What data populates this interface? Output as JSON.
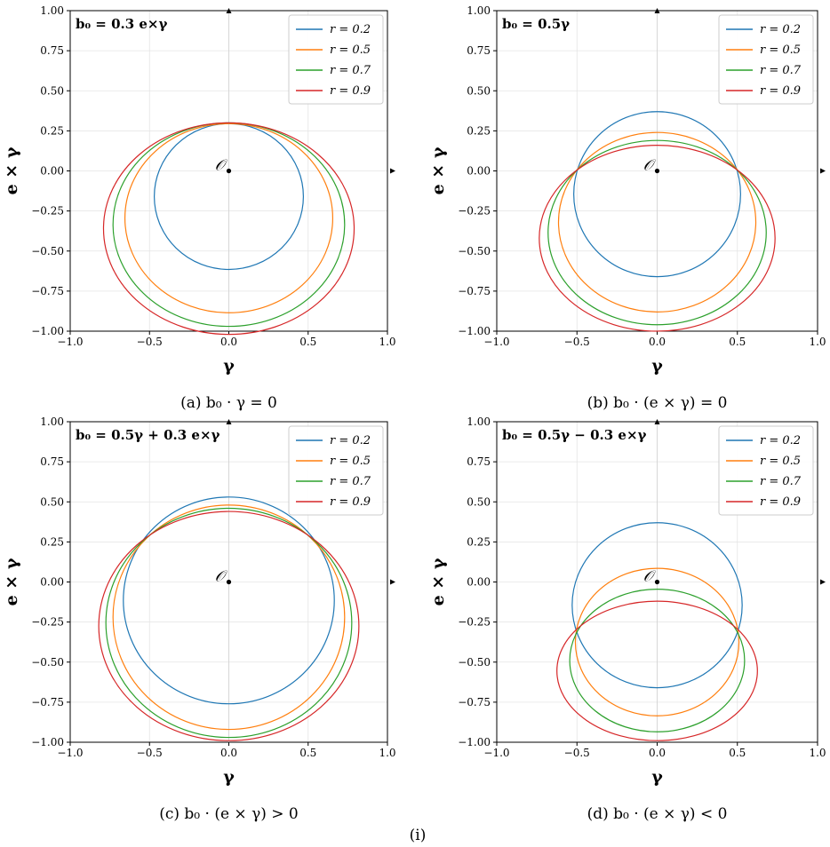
{
  "chart_data": [
    {
      "type": "line",
      "panel_label": "b₀ = 0.3 e×γ",
      "caption": "(a) b₀ · γ = 0",
      "xlabel": "γ",
      "ylabel": "e × γ",
      "xlim": [
        -1.0,
        1.0
      ],
      "ylim": [
        -1.0,
        1.0
      ],
      "x_ticks": [
        "−1.0",
        "−0.5",
        "0.0",
        "0.5",
        "1.0"
      ],
      "y_ticks": [
        "1.00",
        "0.75",
        "0.50",
        "0.25",
        "0.00",
        "−0.25",
        "−0.50",
        "−0.75",
        "−1.00"
      ],
      "grid": true,
      "legend_position": "top-right",
      "origin_label": "𝒪",
      "series": [
        {
          "name": "r = 0.2",
          "color": "#1f77b4",
          "center": [
            0.0,
            -0.16
          ],
          "radii": [
            0.47,
            0.455
          ]
        },
        {
          "name": "r = 0.5",
          "color": "#ff7f0e",
          "center": [
            0.0,
            -0.295
          ],
          "radii": [
            0.655,
            0.59
          ]
        },
        {
          "name": "r = 0.7",
          "color": "#2ca02c",
          "center": [
            0.0,
            -0.335
          ],
          "radii": [
            0.73,
            0.635
          ]
        },
        {
          "name": "r = 0.9",
          "color": "#d62728",
          "center": [
            0.0,
            -0.36
          ],
          "radii": [
            0.79,
            0.66
          ]
        }
      ]
    },
    {
      "type": "line",
      "panel_label": "b₀ = 0.5γ",
      "caption": "(b) b₀ · (e × γ) = 0",
      "xlabel": "γ",
      "ylabel": "e × γ",
      "xlim": [
        -1.0,
        1.0
      ],
      "ylim": [
        -1.0,
        1.0
      ],
      "x_ticks": [
        "−1.0",
        "−0.5",
        "0.0",
        "0.5",
        "1.0"
      ],
      "y_ticks": [
        "1.00",
        "0.75",
        "0.50",
        "0.25",
        "0.00",
        "−0.25",
        "−0.50",
        "−0.75",
        "−1.00"
      ],
      "grid": true,
      "legend_position": "top-right",
      "origin_label": "𝒪",
      "series": [
        {
          "name": "r = 0.2",
          "color": "#1f77b4",
          "center": [
            0.0,
            -0.145
          ],
          "radii": [
            0.52,
            0.515
          ]
        },
        {
          "name": "r = 0.5",
          "color": "#ff7f0e",
          "center": [
            0.0,
            -0.32
          ],
          "radii": [
            0.615,
            0.56
          ]
        },
        {
          "name": "r = 0.7",
          "color": "#2ca02c",
          "center": [
            0.0,
            -0.385
          ],
          "radii": [
            0.68,
            0.575
          ]
        },
        {
          "name": "r = 0.9",
          "color": "#d62728",
          "center": [
            0.0,
            -0.42
          ],
          "radii": [
            0.735,
            0.58
          ]
        }
      ]
    },
    {
      "type": "line",
      "panel_label": "b₀ = 0.5γ + 0.3 e×γ",
      "caption": "(c) b₀ · (e × γ) > 0",
      "xlabel": "γ",
      "ylabel": "e × γ",
      "xlim": [
        -1.0,
        1.0
      ],
      "ylim": [
        -1.0,
        1.0
      ],
      "x_ticks": [
        "−1.0",
        "−0.5",
        "0.0",
        "0.5",
        "1.0"
      ],
      "y_ticks": [
        "1.00",
        "0.75",
        "0.50",
        "0.25",
        "0.00",
        "−0.25",
        "−0.50",
        "−0.75",
        "−1.00"
      ],
      "grid": true,
      "legend_position": "top-right",
      "origin_label": "𝒪",
      "series": [
        {
          "name": "r = 0.2",
          "color": "#1f77b4",
          "center": [
            0.0,
            -0.115
          ],
          "radii": [
            0.665,
            0.645
          ]
        },
        {
          "name": "r = 0.5",
          "color": "#ff7f0e",
          "center": [
            0.0,
            -0.22
          ],
          "radii": [
            0.73,
            0.7
          ]
        },
        {
          "name": "r = 0.7",
          "color": "#2ca02c",
          "center": [
            0.0,
            -0.255
          ],
          "radii": [
            0.775,
            0.715
          ]
        },
        {
          "name": "r = 0.9",
          "color": "#d62728",
          "center": [
            0.0,
            -0.275
          ],
          "radii": [
            0.82,
            0.715
          ]
        }
      ]
    },
    {
      "type": "line",
      "panel_label": "b₀ = 0.5γ − 0.3 e×γ",
      "caption": "(d) b₀ · (e × γ) < 0",
      "xlabel": "γ",
      "ylabel": "e × γ",
      "xlim": [
        -1.0,
        1.0
      ],
      "ylim": [
        -1.0,
        1.0
      ],
      "x_ticks": [
        "−1.0",
        "−0.5",
        "0.0",
        "0.5",
        "1.0"
      ],
      "y_ticks": [
        "1.00",
        "0.75",
        "0.50",
        "0.25",
        "0.00",
        "−0.25",
        "−0.50",
        "−0.75",
        "−1.00"
      ],
      "grid": true,
      "legend_position": "top-right",
      "origin_label": "𝒪",
      "series": [
        {
          "name": "r = 0.2",
          "color": "#1f77b4",
          "center": [
            0.0,
            -0.145
          ],
          "radii": [
            0.53,
            0.515
          ]
        },
        {
          "name": "r = 0.5",
          "color": "#ff7f0e",
          "center": [
            0.0,
            -0.375
          ],
          "radii": [
            0.51,
            0.46
          ]
        },
        {
          "name": "r = 0.7",
          "color": "#2ca02c",
          "center": [
            0.0,
            -0.49
          ],
          "radii": [
            0.545,
            0.445
          ]
        },
        {
          "name": "r = 0.9",
          "color": "#d62728",
          "center": [
            0.0,
            -0.555
          ],
          "radii": [
            0.625,
            0.435
          ]
        }
      ]
    }
  ],
  "footer_text": "(i)"
}
